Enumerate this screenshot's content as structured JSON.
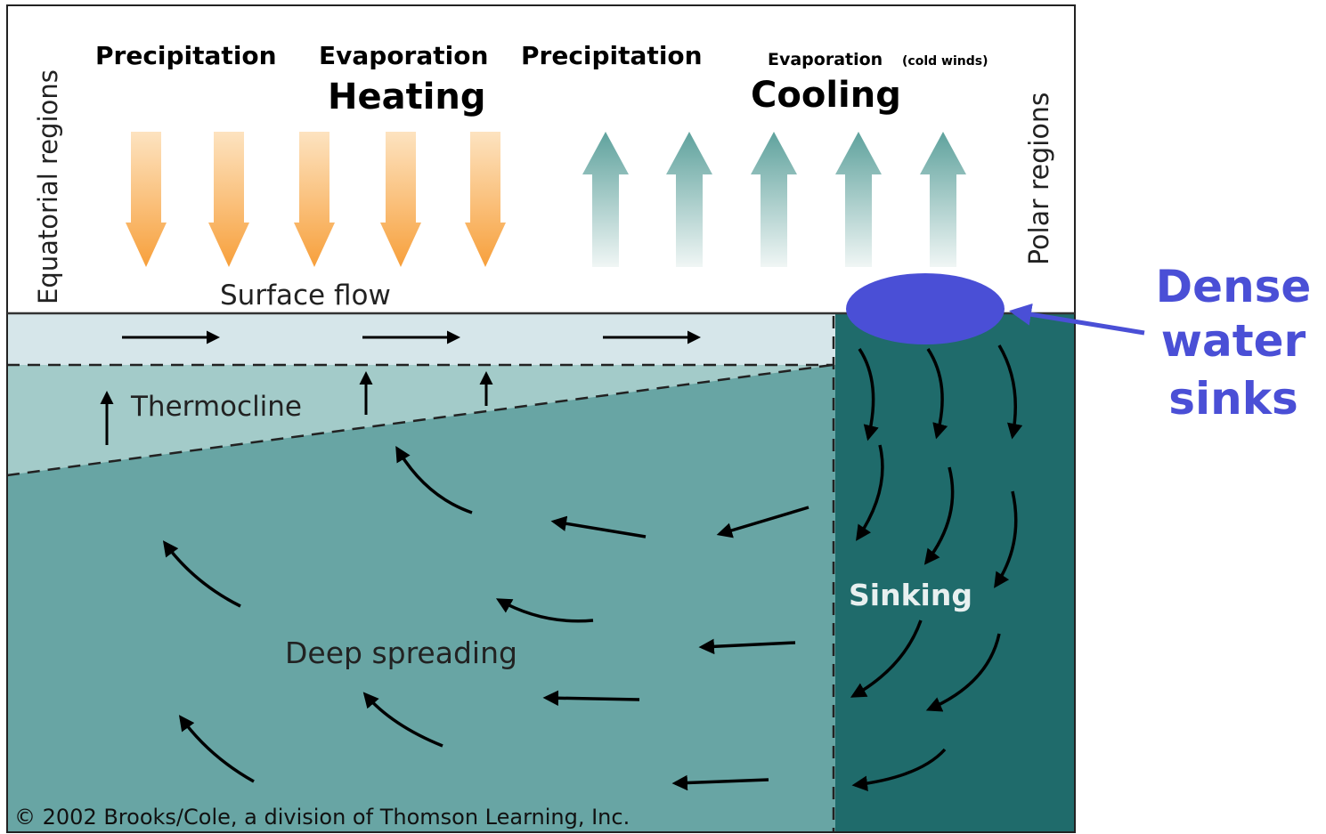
{
  "labels": {
    "precipitation_left": "Precipitation",
    "evaporation": "Evaporation",
    "precipitation_right": "Precipitation",
    "evaporation_cold": "Evaporation",
    "cold_winds": "(cold winds)",
    "heating": "Heating",
    "cooling": "Cooling",
    "equatorial": "Equatorial regions",
    "polar": "Polar regions",
    "surface_flow": "Surface flow",
    "thermocline": "Thermocline",
    "sinking": "Sinking",
    "deep_spreading": "Deep spreading",
    "copyright": "© 2002 Brooks/Cole, a division of Thomson Learning, Inc.",
    "callout_line1": "Dense",
    "callout_line2": "water",
    "callout_line3": "sinks"
  },
  "colors": {
    "heating_arrow": "#f7a03c",
    "cooling_arrow": "#6aa8a2",
    "surface_layer": "#d6e6ea",
    "thermocline_layer": "#a3cbc9",
    "deep_water": "#68a5a4",
    "polar_column": "#1f6b6b",
    "callout": "#4a4fd6"
  }
}
